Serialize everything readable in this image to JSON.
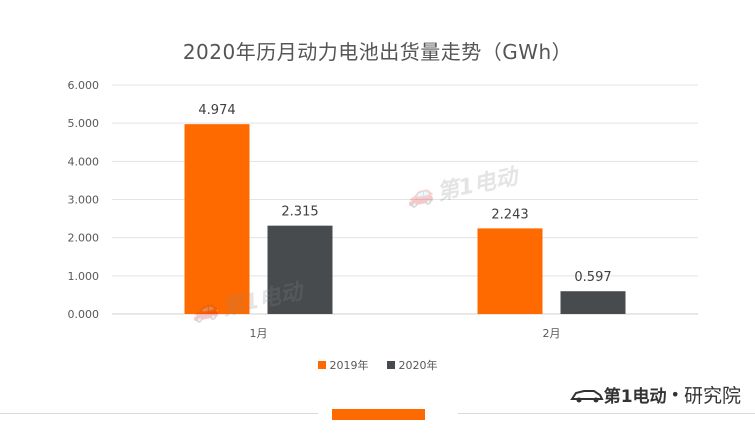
{
  "chart_data": {
    "type": "bar",
    "title": "2020年历月动力电池出货量走势（GWh）",
    "categories": [
      "1月",
      "2月"
    ],
    "series": [
      {
        "name": "2019年",
        "values": [
          4.974,
          2.243
        ],
        "color": "#ff6a00"
      },
      {
        "name": "2020年",
        "values": [
          2.315,
          0.597
        ],
        "color": "#474b4d"
      }
    ],
    "yticks": [
      "0.000",
      "1.000",
      "2.000",
      "3.000",
      "4.000",
      "5.000",
      "6.000"
    ],
    "ylim": [
      0,
      6
    ],
    "grid": true,
    "legend_position": "bottom"
  },
  "brand": {
    "logo_text": "第1电动",
    "separator": "•",
    "name": "研究院"
  },
  "watermark": {
    "text": "第1电动"
  }
}
